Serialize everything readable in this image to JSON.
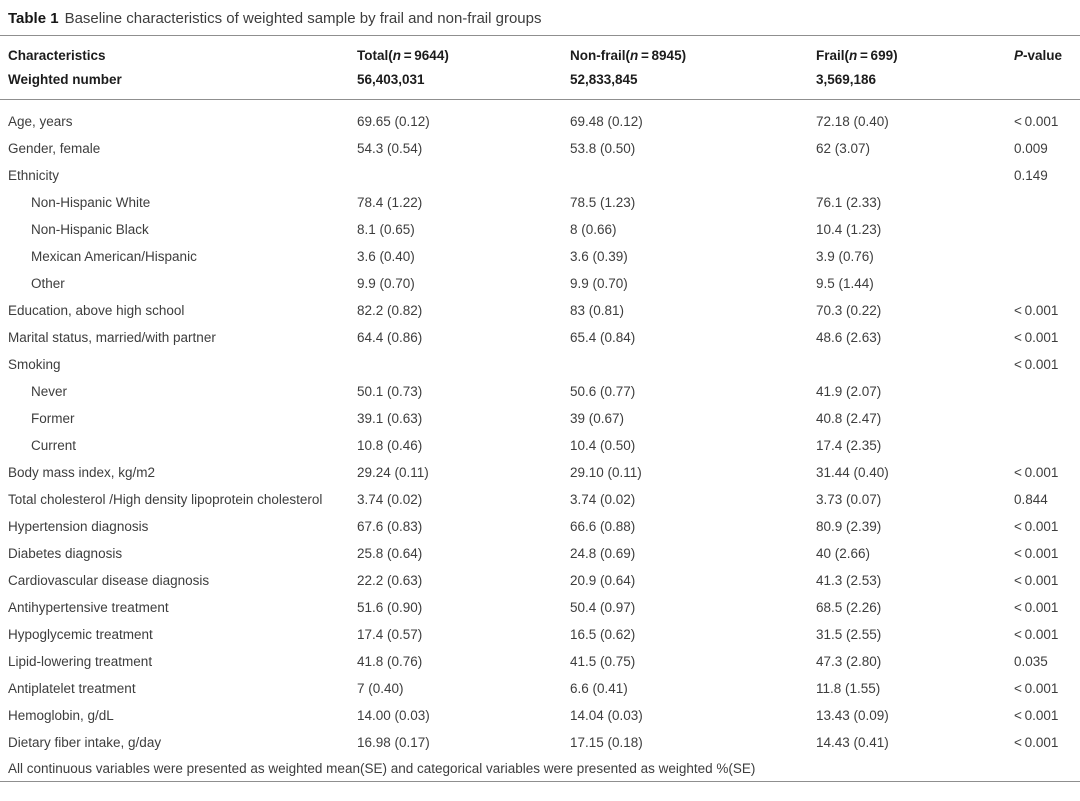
{
  "title": {
    "label": "Table 1",
    "text": "Baseline characteristics of weighted sample by frail and non-frail groups"
  },
  "header": {
    "characteristics": "Characteristics",
    "total": {
      "pre": "Total(",
      "it": "n",
      "post": " = 9644)"
    },
    "nonfrail": {
      "pre": "Non-frail(",
      "it": "n",
      "post": " = 8945)"
    },
    "frail": {
      "pre": "Frail(",
      "it": "n",
      "post": " = 699)"
    },
    "pvalue": {
      "it": "P",
      "post": "-value"
    },
    "weighted": {
      "label": "Weighted number",
      "total": "56,403,031",
      "nonfrail": "52,833,845",
      "frail": "3,569,186"
    }
  },
  "rows": [
    {
      "label": "Age, years",
      "indent": false,
      "total": "69.65 (0.12)",
      "nonfrail": "69.48 (0.12)",
      "frail": "72.18 (0.40)",
      "p": "< 0.001"
    },
    {
      "label": "Gender, female",
      "indent": false,
      "total": "54.3 (0.54)",
      "nonfrail": "53.8 (0.50)",
      "frail": "62 (3.07)",
      "p": "0.009"
    },
    {
      "label": "Ethnicity",
      "indent": false,
      "total": "",
      "nonfrail": "",
      "frail": "",
      "p": "0.149"
    },
    {
      "label": "Non-Hispanic White",
      "indent": true,
      "total": "78.4 (1.22)",
      "nonfrail": "78.5 (1.23)",
      "frail": "76.1 (2.33)",
      "p": ""
    },
    {
      "label": "Non-Hispanic Black",
      "indent": true,
      "total": "8.1 (0.65)",
      "nonfrail": "8 (0.66)",
      "frail": "10.4 (1.23)",
      "p": ""
    },
    {
      "label": "Mexican American/Hispanic",
      "indent": true,
      "total": "3.6 (0.40)",
      "nonfrail": "3.6 (0.39)",
      "frail": "3.9 (0.76)",
      "p": ""
    },
    {
      "label": "Other",
      "indent": true,
      "total": "9.9 (0.70)",
      "nonfrail": "9.9 (0.70)",
      "frail": "9.5 (1.44)",
      "p": ""
    },
    {
      "label": "Education, above high school",
      "indent": false,
      "total": "82.2 (0.82)",
      "nonfrail": "83 (0.81)",
      "frail": "70.3 (0.22)",
      "p": "< 0.001"
    },
    {
      "label": "Marital status, married/with partner",
      "indent": false,
      "total": "64.4 (0.86)",
      "nonfrail": "65.4 (0.84)",
      "frail": "48.6 (2.63)",
      "p": "< 0.001"
    },
    {
      "label": "Smoking",
      "indent": false,
      "total": "",
      "nonfrail": "",
      "frail": "",
      "p": "< 0.001"
    },
    {
      "label": "Never",
      "indent": true,
      "total": "50.1 (0.73)",
      "nonfrail": "50.6 (0.77)",
      "frail": "41.9 (2.07)",
      "p": ""
    },
    {
      "label": "Former",
      "indent": true,
      "total": "39.1 (0.63)",
      "nonfrail": "39 (0.67)",
      "frail": "40.8 (2.47)",
      "p": ""
    },
    {
      "label": "Current",
      "indent": true,
      "total": "10.8 (0.46)",
      "nonfrail": "10.4 (0.50)",
      "frail": "17.4 (2.35)",
      "p": ""
    },
    {
      "label": "Body mass index, kg/m2",
      "indent": false,
      "total": "29.24 (0.11)",
      "nonfrail": "29.10 (0.11)",
      "frail": "31.44 (0.40)",
      "p": "< 0.001"
    },
    {
      "label": "Total cholesterol /High density lipoprotein cholesterol",
      "indent": false,
      "total": "3.74 (0.02)",
      "nonfrail": "3.74 (0.02)",
      "frail": "3.73 (0.07)",
      "p": "0.844"
    },
    {
      "label": "Hypertension diagnosis",
      "indent": false,
      "total": "67.6 (0.83)",
      "nonfrail": "66.6 (0.88)",
      "frail": "80.9 (2.39)",
      "p": "< 0.001"
    },
    {
      "label": "Diabetes diagnosis",
      "indent": false,
      "total": "25.8 (0.64)",
      "nonfrail": "24.8 (0.69)",
      "frail": "40 (2.66)",
      "p": "< 0.001"
    },
    {
      "label": "Cardiovascular disease diagnosis",
      "indent": false,
      "total": "22.2 (0.63)",
      "nonfrail": "20.9 (0.64)",
      "frail": "41.3 (2.53)",
      "p": "< 0.001"
    },
    {
      "label": "Antihypertensive treatment",
      "indent": false,
      "total": "51.6 (0.90)",
      "nonfrail": "50.4 (0.97)",
      "frail": "68.5 (2.26)",
      "p": "< 0.001"
    },
    {
      "label": "Hypoglycemic treatment",
      "indent": false,
      "total": "17.4 (0.57)",
      "nonfrail": "16.5 (0.62)",
      "frail": "31.5 (2.55)",
      "p": "< 0.001"
    },
    {
      "label": "Lipid-lowering treatment",
      "indent": false,
      "total": "41.8 (0.76)",
      "nonfrail": "41.5 (0.75)",
      "frail": "47.3 (2.80)",
      "p": "0.035"
    },
    {
      "label": "Antiplatelet treatment",
      "indent": false,
      "total": "7 (0.40)",
      "nonfrail": "6.6 (0.41)",
      "frail": "11.8 (1.55)",
      "p": "< 0.001"
    },
    {
      "label": "Hemoglobin, g/dL",
      "indent": false,
      "total": "14.00 (0.03)",
      "nonfrail": "14.04 (0.03)",
      "frail": "13.43 (0.09)",
      "p": "< 0.001"
    },
    {
      "label": "Dietary fiber intake, g/day",
      "indent": false,
      "total": "16.98 (0.17)",
      "nonfrail": "17.15 (0.18)",
      "frail": "14.43 (0.41)",
      "p": "< 0.001"
    }
  ],
  "footnote": "All continuous variables were presented as weighted mean(SE) and categorical variables were presented as weighted %(SE)",
  "colors": {
    "text": "#3d3d3d",
    "heading": "#1c1c1c",
    "rule": "#8f8f8f",
    "background": "#ffffff"
  }
}
